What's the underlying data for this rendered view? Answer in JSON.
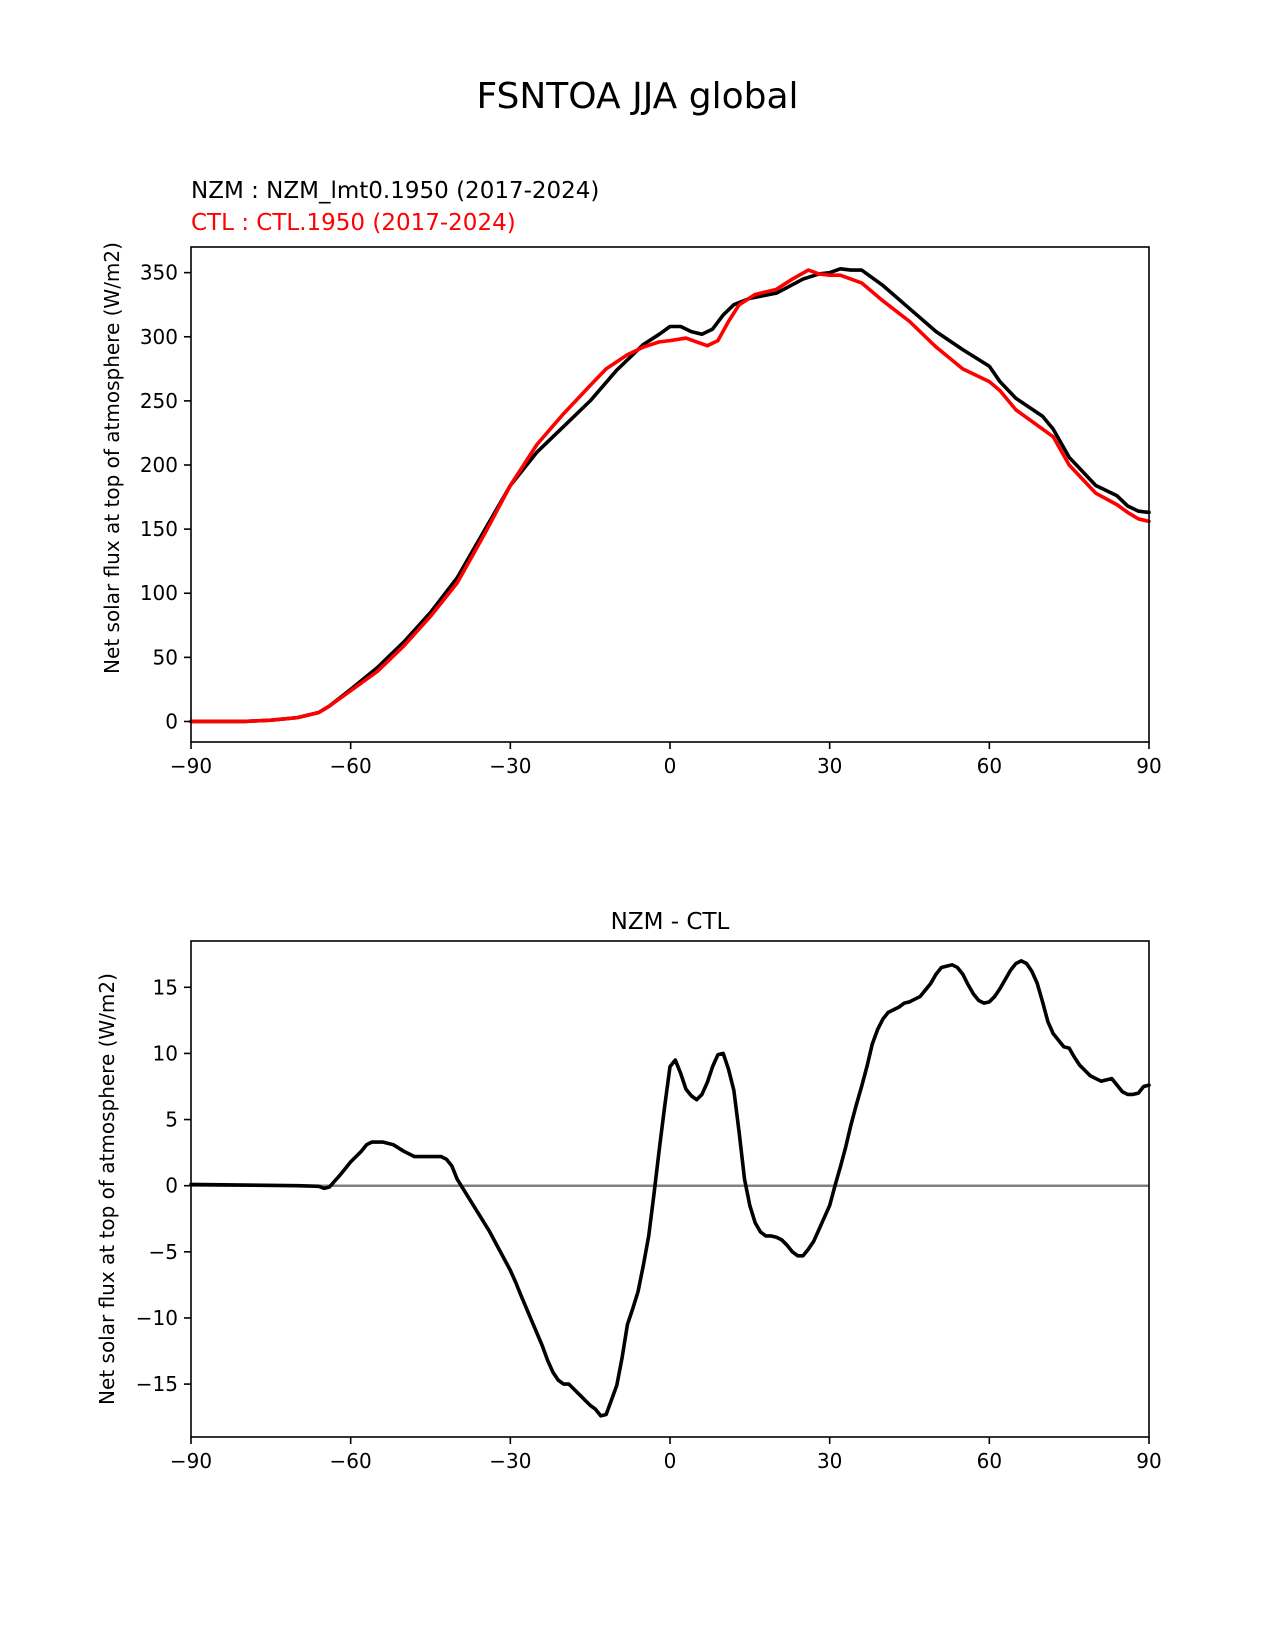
{
  "suptitle": "FSNTOA JJA global",
  "chart_data": [
    {
      "type": "line",
      "title_lines": [
        {
          "text": "NZM  : NZM_lmt0.1950 (2017-2024)",
          "color": "#000000"
        },
        {
          "text": "CTL : CTL.1950 (2017-2024)",
          "color": "#ff0000"
        }
      ],
      "xlabel": "",
      "ylabel": "Net solar flux at top of atmosphere (W/m2)",
      "xlim": [
        -90,
        90
      ],
      "ylim": [
        -16,
        370
      ],
      "xticks": [
        -90,
        -60,
        -30,
        0,
        30,
        60,
        90
      ],
      "yticks": [
        0,
        50,
        100,
        150,
        200,
        250,
        300,
        350
      ],
      "grid": false,
      "series": [
        {
          "name": "NZM",
          "color": "#000000",
          "points": [
            [
              -90,
              0
            ],
            [
              -80,
              0
            ],
            [
              -75,
              1
            ],
            [
              -70,
              3
            ],
            [
              -66,
              7
            ],
            [
              -64,
              12
            ],
            [
              -60,
              25
            ],
            [
              -55,
              42
            ],
            [
              -50,
              62
            ],
            [
              -45,
              85
            ],
            [
              -40,
              112
            ],
            [
              -35,
              148
            ],
            [
              -30,
              184
            ],
            [
              -25,
              210
            ],
            [
              -20,
              230
            ],
            [
              -15,
              250
            ],
            [
              -10,
              274
            ],
            [
              -5,
              294
            ],
            [
              -2,
              302
            ],
            [
              0,
              308
            ],
            [
              2,
              308
            ],
            [
              4,
              304
            ],
            [
              6,
              302
            ],
            [
              8,
              306
            ],
            [
              10,
              317
            ],
            [
              12,
              325
            ],
            [
              15,
              330
            ],
            [
              20,
              334
            ],
            [
              25,
              345
            ],
            [
              28,
              349
            ],
            [
              30,
              350
            ],
            [
              32,
              353
            ],
            [
              34,
              352
            ],
            [
              36,
              352
            ],
            [
              40,
              340
            ],
            [
              45,
              322
            ],
            [
              50,
              304
            ],
            [
              55,
              290
            ],
            [
              60,
              277
            ],
            [
              62,
              265
            ],
            [
              65,
              252
            ],
            [
              70,
              238
            ],
            [
              72,
              228
            ],
            [
              75,
              206
            ],
            [
              80,
              184
            ],
            [
              84,
              176
            ],
            [
              86,
              168
            ],
            [
              88,
              164
            ],
            [
              90,
              163
            ]
          ]
        },
        {
          "name": "CTL",
          "color": "#ff0000",
          "points": [
            [
              -90,
              0
            ],
            [
              -80,
              0
            ],
            [
              -75,
              1
            ],
            [
              -70,
              3
            ],
            [
              -66,
              7
            ],
            [
              -64,
              12
            ],
            [
              -60,
              24
            ],
            [
              -55,
              39
            ],
            [
              -50,
              59
            ],
            [
              -45,
              82
            ],
            [
              -40,
              108
            ],
            [
              -35,
              145
            ],
            [
              -30,
              184
            ],
            [
              -25,
              216
            ],
            [
              -20,
              240
            ],
            [
              -15,
              262
            ],
            [
              -12,
              275
            ],
            [
              -8,
              286
            ],
            [
              -5,
              292
            ],
            [
              -2,
              296
            ],
            [
              0,
              297
            ],
            [
              3,
              299
            ],
            [
              5,
              296
            ],
            [
              7,
              293
            ],
            [
              9,
              297
            ],
            [
              11,
              312
            ],
            [
              13,
              325
            ],
            [
              16,
              333
            ],
            [
              20,
              337
            ],
            [
              23,
              345
            ],
            [
              26,
              352
            ],
            [
              28,
              349
            ],
            [
              30,
              348
            ],
            [
              32,
              348
            ],
            [
              36,
              342
            ],
            [
              40,
              328
            ],
            [
              45,
              312
            ],
            [
              50,
              292
            ],
            [
              55,
              275
            ],
            [
              60,
              265
            ],
            [
              62,
              258
            ],
            [
              65,
              243
            ],
            [
              70,
              228
            ],
            [
              72,
              222
            ],
            [
              75,
              200
            ],
            [
              80,
              178
            ],
            [
              84,
              169
            ],
            [
              86,
              163
            ],
            [
              88,
              158
            ],
            [
              90,
              156
            ]
          ]
        }
      ]
    },
    {
      "type": "line",
      "title_lines": [
        {
          "text": "NZM - CTL",
          "color": "#000000"
        }
      ],
      "xlabel": "",
      "ylabel": "Net solar flux at top of atmosphere (W/m2)",
      "xlim": [
        -90,
        90
      ],
      "ylim": [
        -19,
        18.5
      ],
      "xticks": [
        -90,
        -60,
        -30,
        0,
        30,
        60,
        90
      ],
      "yticks": [
        -15,
        -10,
        -5,
        0,
        5,
        10,
        15
      ],
      "grid": false,
      "zero_line": {
        "y": 0,
        "color": "#808080"
      },
      "series": [
        {
          "name": "NZM - CTL",
          "color": "#000000",
          "points": [
            [
              -90,
              0.1
            ],
            [
              -80,
              0.05
            ],
            [
              -70,
              0
            ],
            [
              -66,
              -0.05
            ],
            [
              -65,
              -0.2
            ],
            [
              -64,
              -0.1
            ],
            [
              -62,
              0.8
            ],
            [
              -60,
              1.8
            ],
            [
              -58,
              2.6
            ],
            [
              -57,
              3.1
            ],
            [
              -56,
              3.3
            ],
            [
              -54,
              3.3
            ],
            [
              -52,
              3.1
            ],
            [
              -50,
              2.6
            ],
            [
              -48,
              2.2
            ],
            [
              -45,
              2.2
            ],
            [
              -43,
              2.2
            ],
            [
              -42,
              2.0
            ],
            [
              -41,
              1.5
            ],
            [
              -40,
              0.5
            ],
            [
              -38,
              -0.8
            ],
            [
              -36,
              -2.1
            ],
            [
              -34,
              -3.4
            ],
            [
              -32,
              -4.9
            ],
            [
              -30,
              -6.4
            ],
            [
              -29,
              -7.3
            ],
            [
              -28,
              -8.3
            ],
            [
              -26,
              -10.2
            ],
            [
              -24,
              -12.1
            ],
            [
              -23,
              -13.2
            ],
            [
              -22,
              -14.1
            ],
            [
              -21,
              -14.7
            ],
            [
              -20,
              -15.0
            ],
            [
              -19,
              -15.0
            ],
            [
              -18,
              -15.4
            ],
            [
              -17,
              -15.8
            ],
            [
              -16,
              -16.2
            ],
            [
              -15,
              -16.6
            ],
            [
              -14,
              -16.9
            ],
            [
              -13,
              -17.4
            ],
            [
              -12,
              -17.3
            ],
            [
              -11,
              -16.2
            ],
            [
              -10,
              -15.1
            ],
            [
              -9,
              -13.0
            ],
            [
              -8,
              -10.5
            ],
            [
              -7,
              -9.3
            ],
            [
              -6,
              -8.0
            ],
            [
              -5,
              -6.0
            ],
            [
              -4,
              -3.8
            ],
            [
              -3,
              -0.6
            ],
            [
              -2,
              2.8
            ],
            [
              -1,
              6.0
            ],
            [
              0,
              9.0
            ],
            [
              1,
              9.5
            ],
            [
              2,
              8.5
            ],
            [
              3,
              7.3
            ],
            [
              4,
              6.8
            ],
            [
              5,
              6.5
            ],
            [
              6,
              6.9
            ],
            [
              7,
              7.8
            ],
            [
              8,
              9.0
            ],
            [
              9,
              9.9
            ],
            [
              10,
              10.0
            ],
            [
              11,
              8.8
            ],
            [
              12,
              7.2
            ],
            [
              13,
              4.0
            ],
            [
              14,
              0.5
            ],
            [
              15,
              -1.5
            ],
            [
              16,
              -2.8
            ],
            [
              17,
              -3.5
            ],
            [
              18,
              -3.8
            ],
            [
              19,
              -3.8
            ],
            [
              20,
              -3.9
            ],
            [
              21,
              -4.1
            ],
            [
              22,
              -4.5
            ],
            [
              23,
              -5.0
            ],
            [
              24,
              -5.3
            ],
            [
              25,
              -5.3
            ],
            [
              26,
              -4.8
            ],
            [
              27,
              -4.2
            ],
            [
              28,
              -3.3
            ],
            [
              29,
              -2.4
            ],
            [
              30,
              -1.5
            ],
            [
              31,
              0.0
            ],
            [
              32,
              1.4
            ],
            [
              33,
              2.9
            ],
            [
              34,
              4.6
            ],
            [
              35,
              6.1
            ],
            [
              36,
              7.5
            ],
            [
              37,
              9.0
            ],
            [
              38,
              10.7
            ],
            [
              39,
              11.8
            ],
            [
              40,
              12.6
            ],
            [
              41,
              13.1
            ],
            [
              42,
              13.3
            ],
            [
              43,
              13.5
            ],
            [
              44,
              13.8
            ],
            [
              45,
              13.9
            ],
            [
              46,
              14.1
            ],
            [
              47,
              14.3
            ],
            [
              48,
              14.8
            ],
            [
              49,
              15.3
            ],
            [
              50,
              16.0
            ],
            [
              51,
              16.5
            ],
            [
              52,
              16.6
            ],
            [
              53,
              16.7
            ],
            [
              54,
              16.5
            ],
            [
              55,
              16.0
            ],
            [
              56,
              15.2
            ],
            [
              57,
              14.5
            ],
            [
              58,
              14.0
            ],
            [
              59,
              13.8
            ],
            [
              60,
              13.9
            ],
            [
              61,
              14.3
            ],
            [
              62,
              14.9
            ],
            [
              63,
              15.6
            ],
            [
              64,
              16.3
            ],
            [
              65,
              16.8
            ],
            [
              66,
              17.0
            ],
            [
              67,
              16.8
            ],
            [
              68,
              16.2
            ],
            [
              69,
              15.3
            ],
            [
              70,
              13.9
            ],
            [
              71,
              12.4
            ],
            [
              72,
              11.5
            ],
            [
              73,
              11.0
            ],
            [
              74,
              10.5
            ],
            [
              75,
              10.4
            ],
            [
              76,
              9.7
            ],
            [
              77,
              9.1
            ],
            [
              78,
              8.7
            ],
            [
              79,
              8.3
            ],
            [
              80,
              8.1
            ],
            [
              81,
              7.9
            ],
            [
              82,
              8.0
            ],
            [
              83,
              8.1
            ],
            [
              84,
              7.6
            ],
            [
              85,
              7.1
            ],
            [
              86,
              6.9
            ],
            [
              87,
              6.9
            ],
            [
              88,
              7.0
            ],
            [
              89,
              7.5
            ],
            [
              90,
              7.6
            ]
          ]
        }
      ]
    }
  ]
}
